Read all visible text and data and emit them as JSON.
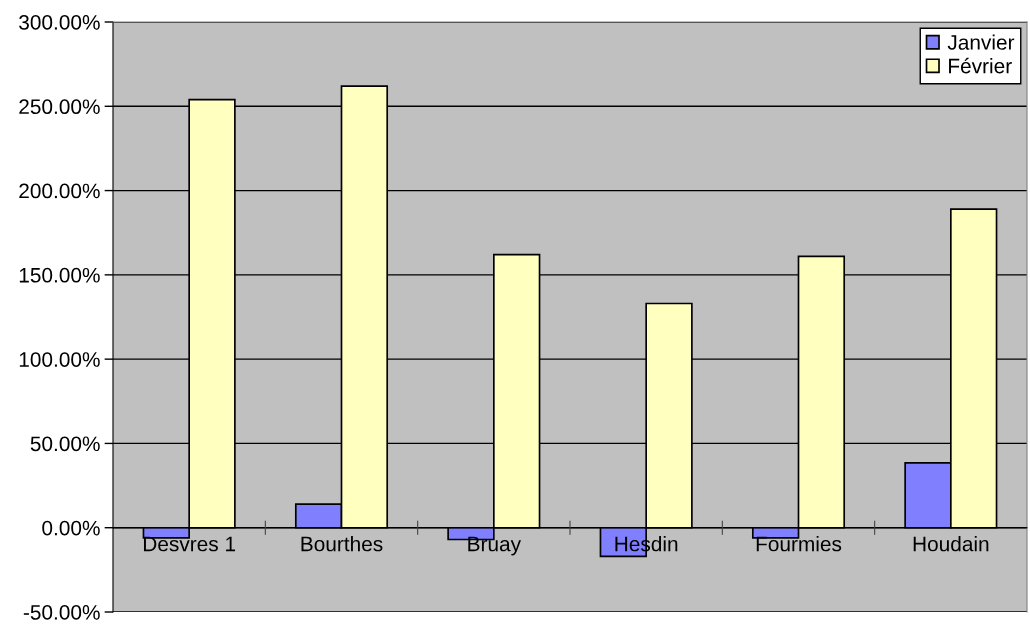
{
  "chart_data": {
    "type": "bar",
    "categories": [
      "Desvres 1",
      "Bourthes",
      "Bruay",
      "Hesdin",
      "Fourmies",
      "Houdain"
    ],
    "series": [
      {
        "name": "Janvier",
        "color": "#8080ff",
        "values": [
          -6,
          14,
          -7,
          -17,
          -6,
          38.5
        ]
      },
      {
        "name": "Février",
        "color": "#ffffc0",
        "values": [
          254,
          262,
          162,
          133,
          161,
          189
        ]
      }
    ],
    "ylim": [
      -50,
      300
    ],
    "yticks": [
      {
        "value": -50,
        "label": "-50.00%"
      },
      {
        "value": 0,
        "label": "0.00%"
      },
      {
        "value": 50,
        "label": "50.00%"
      },
      {
        "value": 100,
        "label": "100.00%"
      },
      {
        "value": 150,
        "label": "150.00%"
      },
      {
        "value": 200,
        "label": "200.00%"
      },
      {
        "value": 250,
        "label": "250.00%"
      },
      {
        "value": 300,
        "label": "300.00%"
      }
    ],
    "grid": "y",
    "legend": "top right"
  }
}
